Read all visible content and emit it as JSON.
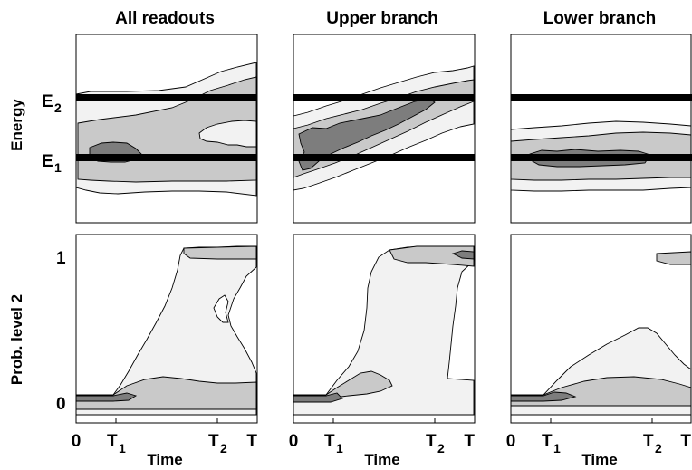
{
  "chart_data": [
    {
      "type": "heatmap",
      "title": "All readouts",
      "ylabel": "Energy",
      "yticks": [
        {
          "main": "E",
          "sub": "2",
          "value": "E2"
        },
        {
          "main": "E",
          "sub": "1",
          "value": "E1"
        }
      ],
      "lines": [
        "E1",
        "E2"
      ],
      "xticks": [
        {
          "main": "0"
        },
        {
          "main": "T",
          "sub": "1"
        },
        {
          "main": "T",
          "sub": "2"
        },
        {
          "main": "T"
        }
      ],
      "xlabel": "Time",
      "contour_levels": [
        "light",
        "medium",
        "dark"
      ],
      "colors": {
        "light": "#f2f2f2",
        "medium": "#c9c9c9",
        "dark": "#7d7d7d"
      }
    },
    {
      "type": "heatmap",
      "title": "Upper branch",
      "yticks": [
        {
          "main": "E",
          "sub": "2",
          "value": "E2"
        },
        {
          "main": "E",
          "sub": "1",
          "value": "E1"
        }
      ],
      "lines": [
        "E1",
        "E2"
      ],
      "xticks": [
        {
          "main": "0"
        },
        {
          "main": "T",
          "sub": "1"
        },
        {
          "main": "T",
          "sub": "2"
        },
        {
          "main": "T"
        }
      ],
      "xlabel": "Time"
    },
    {
      "type": "heatmap",
      "title": "Lower branch",
      "yticks": [
        {
          "main": "E",
          "sub": "2",
          "value": "E2"
        },
        {
          "main": "E",
          "sub": "1",
          "value": "E1"
        }
      ],
      "lines": [
        "E1",
        "E2"
      ],
      "xticks": [
        {
          "main": "0"
        },
        {
          "main": "T",
          "sub": "1"
        },
        {
          "main": "T",
          "sub": "2"
        },
        {
          "main": "T"
        }
      ],
      "xlabel": "Time"
    },
    {
      "type": "heatmap",
      "title": "",
      "ylabel": "Prob. level 2",
      "yticks": [
        {
          "main": "1",
          "value": 1
        },
        {
          "main": "0",
          "value": 0
        }
      ],
      "xticks": [
        {
          "main": "0"
        },
        {
          "main": "T",
          "sub": "1"
        },
        {
          "main": "T",
          "sub": "2"
        },
        {
          "main": "T"
        }
      ],
      "xlabel": "Time"
    },
    {
      "type": "heatmap",
      "title": "",
      "yticks": [
        {
          "main": "1",
          "value": 1
        },
        {
          "main": "0",
          "value": 0
        }
      ],
      "xticks": [
        {
          "main": "0"
        },
        {
          "main": "T",
          "sub": "1"
        },
        {
          "main": "T",
          "sub": "2"
        },
        {
          "main": "T"
        }
      ],
      "xlabel": "Time"
    },
    {
      "type": "heatmap",
      "title": "",
      "yticks": [
        {
          "main": "1",
          "value": 1
        },
        {
          "main": "0",
          "value": 0
        }
      ],
      "xticks": [
        {
          "main": "0"
        },
        {
          "main": "T",
          "sub": "1"
        },
        {
          "main": "T",
          "sub": "2"
        },
        {
          "main": "T"
        }
      ],
      "xlabel": "Time"
    }
  ],
  "titles": {
    "p1": "All readouts",
    "p2": "Upper branch",
    "p3": "Lower branch"
  },
  "ylabels": {
    "energy": "Energy",
    "prob": "Prob. level 2"
  },
  "ticks": {
    "E": "E",
    "E2_sub": "2",
    "E1_sub": "1",
    "one": "1",
    "zero": "0",
    "x0": "0",
    "T": "T",
    "T1_sub": "1",
    "T2_sub": "2"
  },
  "xlabel": "Time"
}
